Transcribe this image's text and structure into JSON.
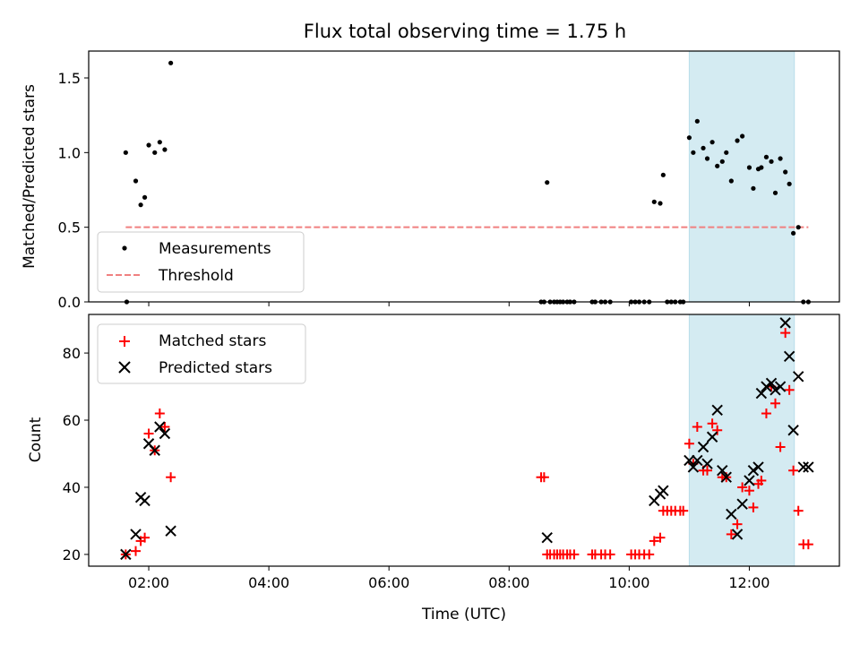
{
  "figure": {
    "title": "Flux total observing time = 1.75 h"
  },
  "chart_data": [
    {
      "type": "scatter",
      "panel": "top",
      "ylabel": "Matched/Predicted stars",
      "xlabel": "",
      "xlim": [
        "01:00",
        "13:30"
      ],
      "ylim": [
        0,
        1.68
      ],
      "yticks": [
        0.0,
        0.5,
        1.0,
        1.5
      ],
      "ytick_labels": [
        "0.0",
        "0.5",
        "1.0",
        "1.5"
      ],
      "grid": false,
      "legend_position": "lower-left",
      "highlight_span": {
        "from": "11:00",
        "to": "12:45",
        "color": "#add8e6"
      },
      "series": [
        {
          "name": "Measurements",
          "marker": "dot",
          "color": "#000000",
          "x": [
            "01:37",
            "01:38",
            "01:47",
            "01:52",
            "01:56",
            "02:00",
            "02:06",
            "02:11",
            "02:16",
            "02:22",
            "08:32",
            "08:35",
            "08:38",
            "08:41",
            "08:45",
            "08:48",
            "08:51",
            "08:54",
            "08:58",
            "09:01",
            "09:05",
            "09:23",
            "09:26",
            "09:32",
            "09:36",
            "09:41",
            "10:02",
            "10:06",
            "10:10",
            "10:15",
            "10:20",
            "10:25",
            "10:31",
            "10:34",
            "10:38",
            "10:42",
            "10:46",
            "10:51",
            "10:54",
            "11:00",
            "11:04",
            "11:08",
            "11:14",
            "11:18",
            "11:23",
            "11:28",
            "11:33",
            "11:37",
            "11:42",
            "11:48",
            "11:53",
            "12:00",
            "12:04",
            "12:09",
            "12:12",
            "12:17",
            "12:22",
            "12:26",
            "12:31",
            "12:36",
            "12:40",
            "12:44",
            "12:49",
            "12:54",
            "12:59"
          ],
          "y": [
            1.0,
            0.0,
            0.81,
            0.65,
            0.7,
            1.05,
            1.0,
            1.07,
            1.02,
            1.6,
            0.0,
            0.0,
            0.8,
            0.0,
            0.0,
            0.0,
            0.0,
            0.0,
            0.0,
            0.0,
            0.0,
            0.0,
            0.0,
            0.0,
            0.0,
            0.0,
            0.0,
            0.0,
            0.0,
            0.0,
            0.0,
            0.67,
            0.66,
            0.85,
            0.0,
            0.0,
            0.0,
            0.0,
            0.0,
            1.1,
            1.0,
            1.21,
            1.03,
            0.96,
            1.07,
            0.91,
            0.94,
            1.0,
            0.81,
            1.08,
            1.11,
            0.9,
            0.76,
            0.89,
            0.9,
            0.97,
            0.94,
            0.73,
            0.96,
            0.87,
            0.79,
            0.46,
            0.5,
            0.0,
            0.0
          ]
        },
        {
          "name": "Threshold",
          "marker": "dashed-line",
          "color": "#f08080",
          "x": [
            "01:37",
            "12:59"
          ],
          "y": [
            0.5,
            0.5
          ]
        }
      ]
    },
    {
      "type": "scatter",
      "panel": "bottom",
      "ylabel": "Count",
      "xlabel": "Time (UTC)",
      "xlim": [
        "01:00",
        "13:30"
      ],
      "ylim": [
        16.5,
        91.5
      ],
      "yticks": [
        20,
        40,
        60,
        80
      ],
      "ytick_labels": [
        "20",
        "40",
        "60",
        "80"
      ],
      "xticks": [
        "02:00",
        "04:00",
        "06:00",
        "08:00",
        "10:00",
        "12:00"
      ],
      "grid": false,
      "legend_position": "upper-left",
      "highlight_span": {
        "from": "11:00",
        "to": "12:45",
        "color": "#add8e6"
      },
      "series": [
        {
          "name": "Matched stars",
          "marker": "plus",
          "color": "#ff0000",
          "x": [
            "01:37",
            "01:47",
            "01:52",
            "01:56",
            "02:00",
            "02:06",
            "02:11",
            "02:16",
            "02:22",
            "08:32",
            "08:35",
            "08:38",
            "08:41",
            "08:45",
            "08:48",
            "08:51",
            "08:54",
            "08:58",
            "09:01",
            "09:05",
            "09:23",
            "09:26",
            "09:32",
            "09:36",
            "09:41",
            "10:02",
            "10:06",
            "10:10",
            "10:15",
            "10:20",
            "10:25",
            "10:31",
            "10:34",
            "10:38",
            "10:42",
            "10:46",
            "10:51",
            "10:54",
            "11:00",
            "11:04",
            "11:08",
            "11:14",
            "11:18",
            "11:23",
            "11:28",
            "11:33",
            "11:37",
            "11:42",
            "11:48",
            "11:53",
            "12:00",
            "12:04",
            "12:09",
            "12:12",
            "12:17",
            "12:22",
            "12:26",
            "12:31",
            "12:36",
            "12:40",
            "12:44",
            "12:49",
            "12:54",
            "12:59"
          ],
          "y": [
            20,
            21,
            24,
            25,
            56,
            51,
            62,
            58,
            43,
            43,
            43,
            20,
            20,
            20,
            20,
            20,
            20,
            20,
            20,
            20,
            20,
            20,
            20,
            20,
            20,
            20,
            20,
            20,
            20,
            20,
            24,
            25,
            33,
            33,
            33,
            33,
            33,
            33,
            53,
            47,
            58,
            45,
            45,
            59,
            57,
            43,
            43,
            26,
            29,
            40,
            39,
            34,
            41,
            42,
            62,
            70,
            65,
            52,
            86,
            69,
            45,
            33,
            23,
            23
          ]
        },
        {
          "name": "Predicted stars",
          "marker": "x",
          "color": "#000000",
          "x": [
            "01:37",
            "01:47",
            "01:52",
            "01:56",
            "02:00",
            "02:06",
            "02:11",
            "02:16",
            "02:22",
            "08:38",
            "10:25",
            "10:31",
            "10:34",
            "11:00",
            "11:04",
            "11:08",
            "11:14",
            "11:18",
            "11:23",
            "11:28",
            "11:33",
            "11:37",
            "11:42",
            "11:48",
            "11:53",
            "12:00",
            "12:04",
            "12:09",
            "12:12",
            "12:17",
            "12:22",
            "12:26",
            "12:31",
            "12:36",
            "12:40",
            "12:44",
            "12:49",
            "12:54",
            "12:59"
          ],
          "y": [
            20,
            26,
            37,
            36,
            53,
            51,
            58,
            56,
            27,
            25,
            36,
            38,
            39,
            48,
            46,
            48,
            52,
            47,
            55,
            63,
            45,
            43,
            32,
            26,
            35,
            42,
            45,
            46,
            68,
            70,
            71,
            69,
            70,
            89,
            79,
            57,
            73,
            46,
            46
          ]
        }
      ]
    }
  ]
}
